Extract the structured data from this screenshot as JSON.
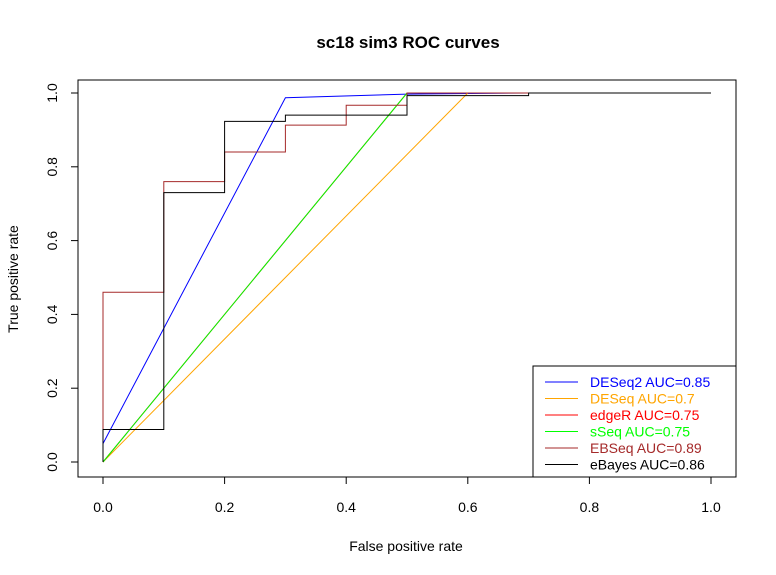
{
  "chart_data": {
    "type": "line",
    "title": "sc18 sim3 ROC curves",
    "xlabel": "False positive rate",
    "ylabel": "True positive rate",
    "xlim": [
      0,
      1
    ],
    "ylim": [
      0,
      1
    ],
    "xticks": [
      "0.0",
      "0.2",
      "0.4",
      "0.6",
      "0.8",
      "1.0"
    ],
    "yticks": [
      "0.0",
      "0.2",
      "0.4",
      "0.6",
      "0.8",
      "1.0"
    ],
    "grid": false,
    "legend_position": "bottom-right",
    "series": [
      {
        "name": "DESeq2 AUC=0.85",
        "color": "#0000ff",
        "points": [
          [
            0,
            0.05
          ],
          [
            0.3,
            0.987
          ],
          [
            0.5,
            0.997
          ],
          [
            0.7,
            1.0
          ],
          [
            1.0,
            1.0
          ]
        ]
      },
      {
        "name": "DESeq AUC=0.7",
        "color": "#ffa500",
        "points": [
          [
            0,
            0
          ],
          [
            0.6,
            1.0
          ],
          [
            0.7,
            1.0
          ]
        ]
      },
      {
        "name": "edgeR AUC=0.75",
        "color": "#ff0000",
        "points": [
          [
            0,
            0
          ],
          [
            0.5,
            1.0
          ],
          [
            0.7,
            1.0
          ]
        ]
      },
      {
        "name": "sSeq AUC=0.75",
        "color": "#00ff00",
        "points": [
          [
            0,
            0
          ],
          [
            0.5,
            1.0
          ],
          [
            0.7,
            1.0
          ]
        ]
      },
      {
        "name": "EBSeq AUC=0.89",
        "color": "#a52a2a",
        "points": [
          [
            0,
            0
          ],
          [
            0,
            0.46
          ],
          [
            0.1,
            0.46
          ],
          [
            0.1,
            0.76
          ],
          [
            0.2,
            0.76
          ],
          [
            0.2,
            0.84
          ],
          [
            0.3,
            0.84
          ],
          [
            0.3,
            0.913
          ],
          [
            0.4,
            0.913
          ],
          [
            0.4,
            0.967
          ],
          [
            0.5,
            0.967
          ],
          [
            0.5,
            1.0
          ],
          [
            0.7,
            1.0
          ]
        ]
      },
      {
        "name": "eBayes AUC=0.86",
        "color": "#000000",
        "points": [
          [
            0,
            0
          ],
          [
            0,
            0.088
          ],
          [
            0.1,
            0.088
          ],
          [
            0.1,
            0.73
          ],
          [
            0.2,
            0.73
          ],
          [
            0.2,
            0.923
          ],
          [
            0.3,
            0.923
          ],
          [
            0.3,
            0.94
          ],
          [
            0.5,
            0.94
          ],
          [
            0.5,
            0.993
          ],
          [
            0.7,
            0.993
          ],
          [
            0.7,
            1.0
          ],
          [
            1.0,
            1.0
          ]
        ]
      }
    ]
  }
}
